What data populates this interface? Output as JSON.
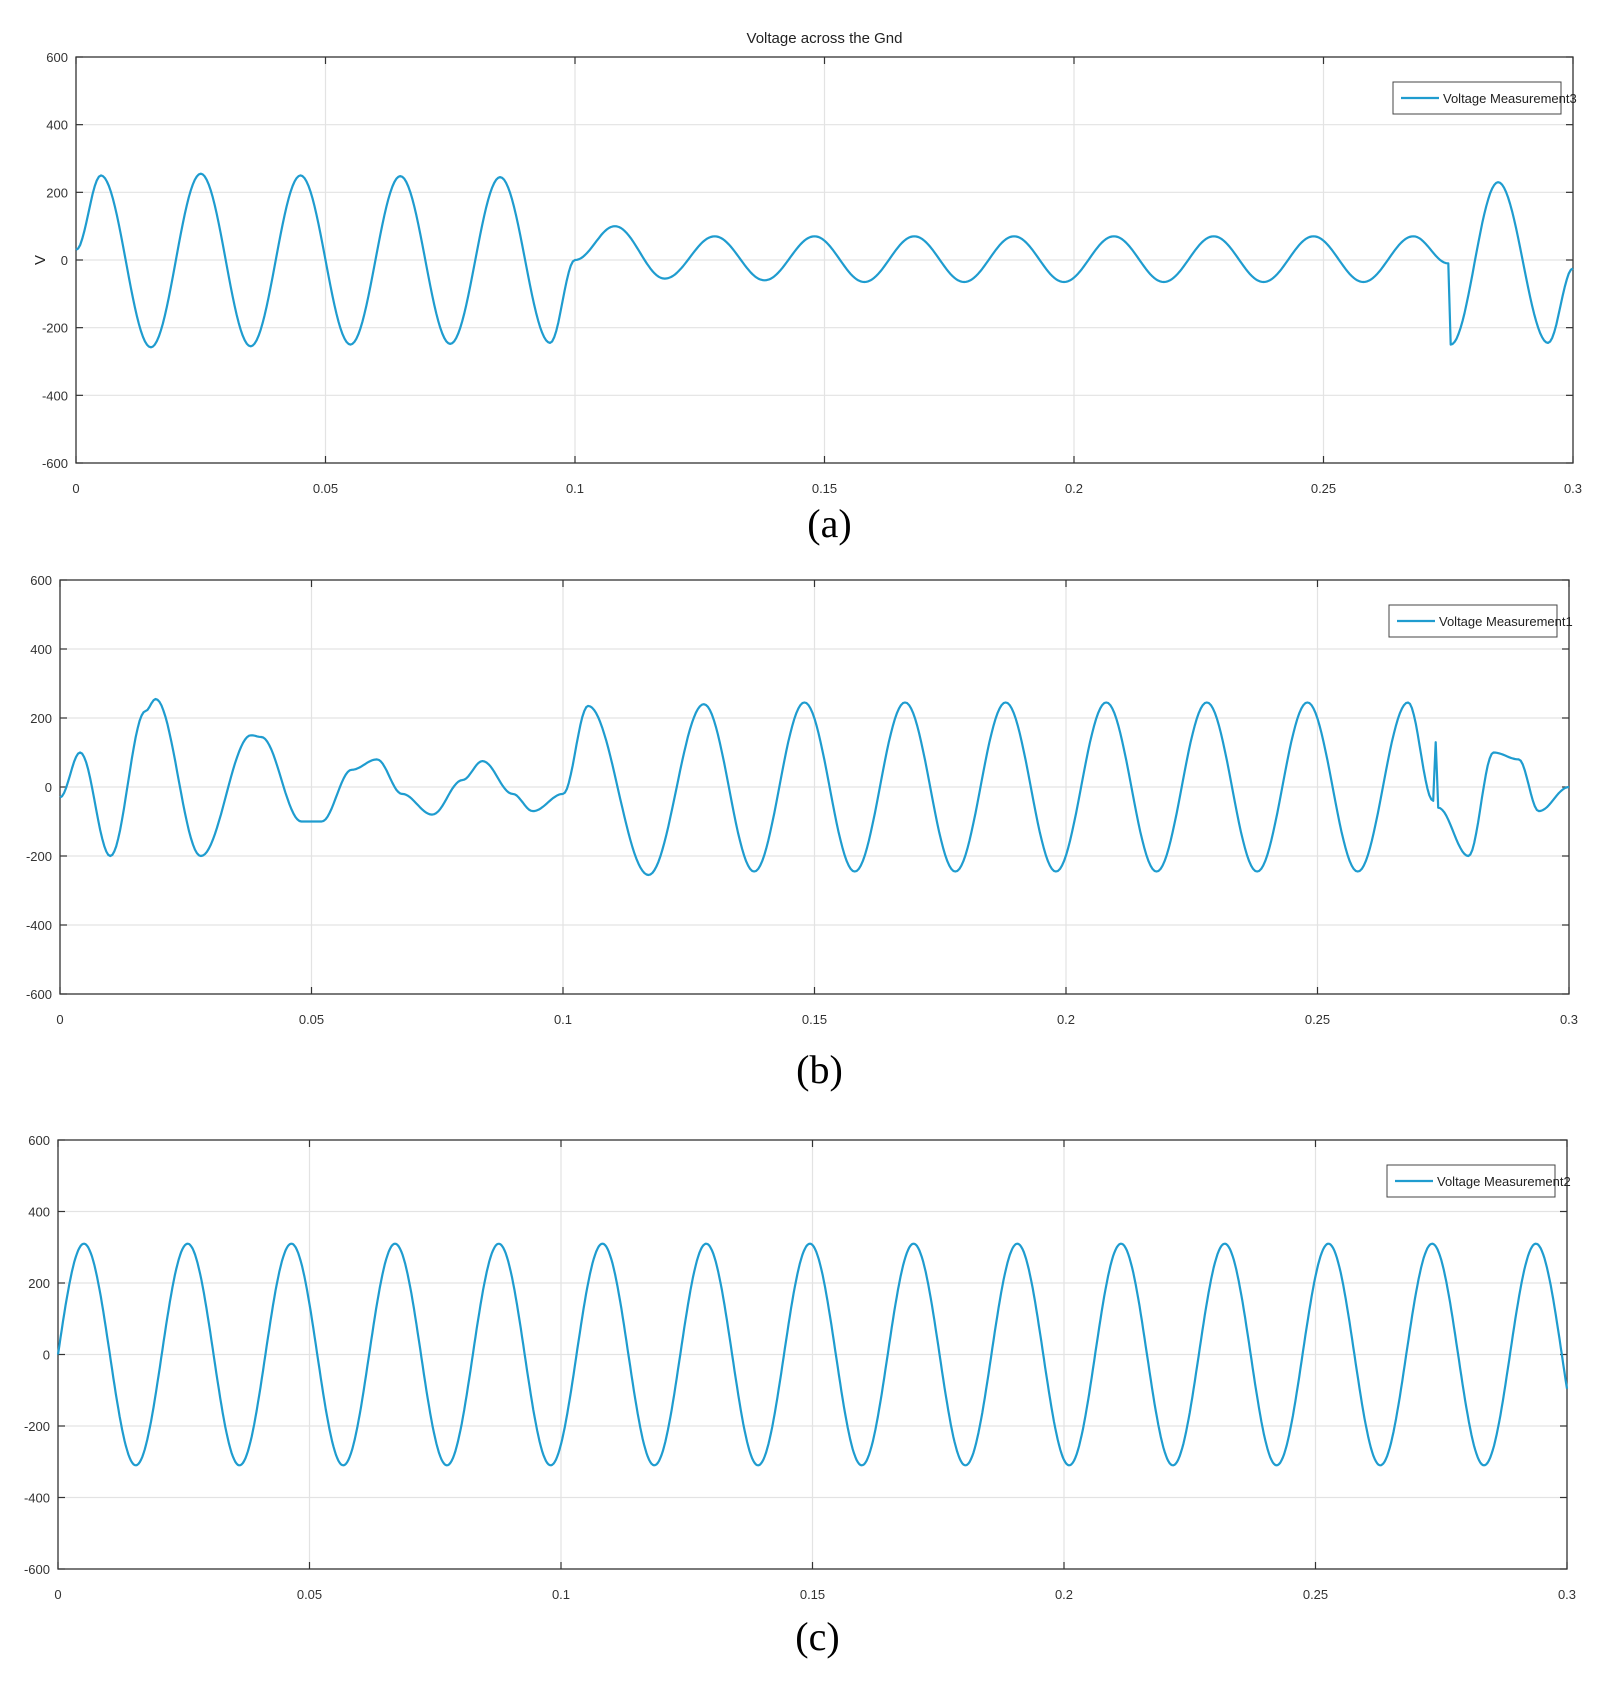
{
  "figure": {
    "line_color": "#1f9ccf",
    "grid_color": "#e3e3e3",
    "axes_color": "#333333"
  },
  "chart_data": [
    {
      "type": "line",
      "title": "Voltage across the Gnd",
      "ylabel": "V",
      "xlabel": "",
      "caption": "(a)",
      "xlim": [
        0,
        0.3
      ],
      "ylim": [
        -600,
        600
      ],
      "xticks": [
        "0",
        "0.05",
        "0.1",
        "0.15",
        "0.2",
        "0.25",
        "0.3"
      ],
      "yticks": [
        "600",
        "400",
        "200",
        "0",
        "-200",
        "-400",
        "-600"
      ],
      "grid": true,
      "legend_position": "top-right",
      "series": [
        {
          "name": "Voltage Measurement3",
          "x": [
            0,
            0.005,
            0.015,
            0.025,
            0.035,
            0.045,
            0.055,
            0.065,
            0.075,
            0.085,
            0.095,
            0.1,
            0.108,
            0.118,
            0.128,
            0.138,
            0.148,
            0.158,
            0.168,
            0.178,
            0.188,
            0.198,
            0.208,
            0.218,
            0.228,
            0.238,
            0.248,
            0.258,
            0.268,
            0.275,
            0.2755,
            0.285,
            0.295,
            0.3
          ],
          "y": [
            30,
            250,
            -258,
            255,
            -255,
            250,
            -250,
            248,
            -248,
            245,
            -245,
            0,
            100,
            -55,
            70,
            -60,
            70,
            -65,
            70,
            -65,
            70,
            -65,
            70,
            -65,
            70,
            -65,
            70,
            -65,
            70,
            -10,
            -250,
            230,
            -245,
            -25
          ]
        }
      ]
    },
    {
      "type": "line",
      "title": "",
      "ylabel": "",
      "xlabel": "",
      "caption": "(b)",
      "xlim": [
        0,
        0.3
      ],
      "ylim": [
        -600,
        600
      ],
      "xticks": [
        "0",
        "0.05",
        "0.1",
        "0.15",
        "0.2",
        "0.25",
        "0.3"
      ],
      "yticks": [
        "600",
        "400",
        "200",
        "0",
        "-200",
        "-400",
        "-600"
      ],
      "grid": true,
      "legend_position": "top-right",
      "series": [
        {
          "name": "Voltage Measurement1",
          "x": [
            0,
            0.004,
            0.01,
            0.017,
            0.019,
            0.028,
            0.038,
            0.04,
            0.048,
            0.052,
            0.058,
            0.063,
            0.068,
            0.074,
            0.08,
            0.084,
            0.09,
            0.094,
            0.1,
            0.105,
            0.117,
            0.128,
            0.138,
            0.148,
            0.158,
            0.168,
            0.178,
            0.188,
            0.198,
            0.208,
            0.218,
            0.228,
            0.238,
            0.248,
            0.258,
            0.268,
            0.273,
            0.2735,
            0.274,
            0.28,
            0.285,
            0.29,
            0.294,
            0.3
          ],
          "y": [
            -30,
            100,
            -200,
            220,
            255,
            -200,
            150,
            145,
            -100,
            -100,
            50,
            80,
            -20,
            -80,
            20,
            75,
            -20,
            -70,
            -20,
            235,
            -255,
            240,
            -245,
            245,
            -245,
            245,
            -245,
            245,
            -245,
            245,
            -245,
            245,
            -245,
            245,
            -245,
            245,
            -40,
            130,
            -60,
            -200,
            100,
            80,
            -70,
            0
          ]
        }
      ]
    },
    {
      "type": "line",
      "title": "",
      "ylabel": "",
      "xlabel": "",
      "caption": "(c)",
      "xlim": [
        0,
        0.3
      ],
      "ylim": [
        -600,
        600
      ],
      "xticks": [
        "0",
        "0.05",
        "0.1",
        "0.15",
        "0.2",
        "0.25",
        "0.3"
      ],
      "yticks": [
        "600",
        "400",
        "200",
        "0",
        "-200",
        "-400",
        "-600"
      ],
      "grid": true,
      "legend_position": "top-right",
      "series": [
        {
          "name": "Voltage Measurement2",
          "x": [
            0,
            0.3
          ],
          "y": [
            0,
            0
          ],
          "waveform": {
            "amplitude": 310,
            "frequency_hz": 48.5,
            "phase_deg": 0
          }
        }
      ]
    }
  ]
}
